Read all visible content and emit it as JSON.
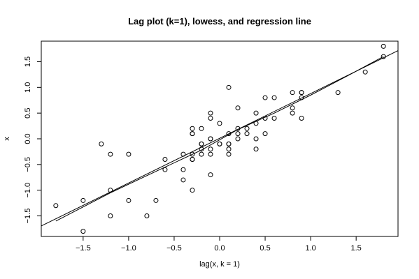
{
  "chart_data": {
    "type": "scatter",
    "title": "Lag plot (k=1), lowess, and regression line",
    "xlabel": "lag(x, k = 1)",
    "ylabel": "x",
    "xlim": [
      -1.96,
      1.96
    ],
    "ylim": [
      -1.9,
      1.9
    ],
    "xticks": [
      -1.5,
      -1.0,
      -0.5,
      0.0,
      0.5,
      1.0,
      1.5
    ],
    "xtick_labels": [
      "−1.5",
      "−1.0",
      "−0.5",
      "0.0",
      "0.5",
      "1.0",
      "1.5"
    ],
    "yticks": [
      -1.5,
      -1.0,
      -0.5,
      0.0,
      0.5,
      1.0,
      1.5
    ],
    "ytick_labels": [
      "−1.5",
      "−1.0",
      "−0.5",
      "0.0",
      "0.5",
      "1.0",
      "1.5"
    ],
    "grid": false,
    "points": [
      {
        "x": -1.8,
        "y": -1.3
      },
      {
        "x": -1.5,
        "y": -1.2
      },
      {
        "x": -1.5,
        "y": -1.8
      },
      {
        "x": -1.3,
        "y": -0.1
      },
      {
        "x": -1.2,
        "y": -0.3
      },
      {
        "x": -1.2,
        "y": -1.0
      },
      {
        "x": -1.2,
        "y": -1.5
      },
      {
        "x": -1.0,
        "y": -0.3
      },
      {
        "x": -1.0,
        "y": -1.2
      },
      {
        "x": -0.8,
        "y": -1.5
      },
      {
        "x": -0.7,
        "y": -1.2
      },
      {
        "x": -0.6,
        "y": -0.4
      },
      {
        "x": -0.6,
        "y": -0.6
      },
      {
        "x": -0.4,
        "y": -0.3
      },
      {
        "x": -0.4,
        "y": -0.6
      },
      {
        "x": -0.4,
        "y": -0.8
      },
      {
        "x": -0.3,
        "y": 0.2
      },
      {
        "x": -0.3,
        "y": 0.1
      },
      {
        "x": -0.3,
        "y": 0.1
      },
      {
        "x": -0.3,
        "y": -0.3
      },
      {
        "x": -0.3,
        "y": -0.4
      },
      {
        "x": -0.3,
        "y": -0.4
      },
      {
        "x": -0.3,
        "y": -1.0
      },
      {
        "x": -0.2,
        "y": 0.2
      },
      {
        "x": -0.2,
        "y": -0.1
      },
      {
        "x": -0.2,
        "y": -0.1
      },
      {
        "x": -0.2,
        "y": -0.2
      },
      {
        "x": -0.2,
        "y": -0.3
      },
      {
        "x": -0.1,
        "y": 0.5
      },
      {
        "x": -0.1,
        "y": 0.4
      },
      {
        "x": -0.1,
        "y": 0.0
      },
      {
        "x": -0.1,
        "y": 0.0
      },
      {
        "x": -0.1,
        "y": -0.2
      },
      {
        "x": -0.1,
        "y": -0.3
      },
      {
        "x": -0.1,
        "y": -0.7
      },
      {
        "x": 0.0,
        "y": 0.3
      },
      {
        "x": 0.0,
        "y": -0.1
      },
      {
        "x": 0.0,
        "y": -0.1
      },
      {
        "x": 0.1,
        "y": 1.0
      },
      {
        "x": 0.1,
        "y": 0.1
      },
      {
        "x": 0.1,
        "y": -0.1
      },
      {
        "x": 0.1,
        "y": -0.1
      },
      {
        "x": 0.1,
        "y": -0.2
      },
      {
        "x": 0.1,
        "y": -0.3
      },
      {
        "x": 0.2,
        "y": 0.6
      },
      {
        "x": 0.2,
        "y": 0.2
      },
      {
        "x": 0.2,
        "y": 0.1
      },
      {
        "x": 0.2,
        "y": 0.0
      },
      {
        "x": 0.3,
        "y": 0.2
      },
      {
        "x": 0.3,
        "y": 0.1
      },
      {
        "x": 0.4,
        "y": 0.5
      },
      {
        "x": 0.4,
        "y": 0.3
      },
      {
        "x": 0.4,
        "y": 0.0
      },
      {
        "x": 0.4,
        "y": -0.2
      },
      {
        "x": 0.5,
        "y": 0.8
      },
      {
        "x": 0.5,
        "y": 0.4
      },
      {
        "x": 0.5,
        "y": 0.1
      },
      {
        "x": 0.6,
        "y": 0.8
      },
      {
        "x": 0.6,
        "y": 0.4
      },
      {
        "x": 0.8,
        "y": 0.9
      },
      {
        "x": 0.8,
        "y": 0.6
      },
      {
        "x": 0.8,
        "y": 0.5
      },
      {
        "x": 0.9,
        "y": 0.9
      },
      {
        "x": 0.9,
        "y": 0.9
      },
      {
        "x": 0.9,
        "y": 0.8
      },
      {
        "x": 0.9,
        "y": 0.4
      },
      {
        "x": 1.3,
        "y": 0.9
      },
      {
        "x": 1.6,
        "y": 1.3
      },
      {
        "x": 1.8,
        "y": 1.8
      },
      {
        "x": 1.8,
        "y": 1.6
      }
    ],
    "regression_line": {
      "intercept": 0.01,
      "slope": 0.87
    },
    "lowess": [
      {
        "x": -1.8,
        "y": -1.6
      },
      {
        "x": -1.2,
        "y": -1.05
      },
      {
        "x": -0.6,
        "y": -0.55
      },
      {
        "x": -0.2,
        "y": -0.22
      },
      {
        "x": 0.2,
        "y": 0.18
      },
      {
        "x": 0.6,
        "y": 0.5
      },
      {
        "x": 1.0,
        "y": 0.85
      },
      {
        "x": 1.4,
        "y": 1.22
      },
      {
        "x": 1.8,
        "y": 1.6
      }
    ]
  }
}
